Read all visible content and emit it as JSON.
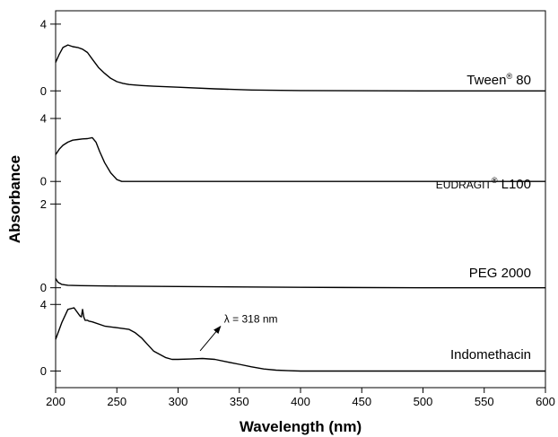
{
  "chart_data": {
    "type": "line",
    "xlabel": "Wavelength (nm)",
    "ylabel": "Absorbance",
    "xlim": [
      200,
      600
    ],
    "xticks": [
      200,
      250,
      300,
      350,
      400,
      450,
      500,
      550,
      600
    ],
    "grid": false,
    "legend": "none (series labels drawn next to each curve)",
    "series": [
      {
        "name": "Tween® 80",
        "label_main": "Tween",
        "label_sup": "®",
        "label_rest": " 80",
        "yticks": [
          0,
          4
        ],
        "ylim": [
          -0.9,
          4.8
        ],
        "x": [
          200,
          203,
          206,
          210,
          214,
          218,
          222,
          226,
          230,
          235,
          240,
          245,
          250,
          255,
          260,
          270,
          280,
          300,
          330,
          360,
          400,
          500,
          600
        ],
        "y": [
          1.7,
          2.2,
          2.6,
          2.75,
          2.65,
          2.6,
          2.5,
          2.3,
          1.9,
          1.4,
          1.05,
          0.75,
          0.55,
          0.45,
          0.38,
          0.32,
          0.28,
          0.22,
          0.12,
          0.05,
          0.02,
          0.0,
          0.0
        ]
      },
      {
        "name": "EUDRAGIT® L100",
        "label_main": "EUDRAGIT",
        "label_sup": "®",
        "label_rest": " L100",
        "yticks": [
          0,
          4
        ],
        "ylim": [
          -0.9,
          4.8
        ],
        "x": [
          200,
          203,
          206,
          210,
          214,
          218,
          222,
          226,
          230,
          233,
          236,
          240,
          245,
          250,
          254,
          258,
          300,
          400,
          500,
          600
        ],
        "y": [
          1.7,
          2.05,
          2.3,
          2.5,
          2.62,
          2.66,
          2.7,
          2.72,
          2.78,
          2.5,
          1.9,
          1.2,
          0.55,
          0.12,
          0.0,
          0.0,
          0.0,
          0.0,
          0.0,
          0.0
        ],
        "label_is_small_caps": true
      },
      {
        "name": "PEG 2000",
        "label_main": "PEG 2000",
        "label_sup": "",
        "label_rest": "",
        "yticks": [
          0,
          2
        ],
        "ylim": [
          -0.2,
          2.2
        ],
        "x": [
          200,
          202,
          205,
          210,
          220,
          250,
          300,
          400,
          500,
          600
        ],
        "y": [
          0.22,
          0.13,
          0.08,
          0.06,
          0.05,
          0.04,
          0.03,
          0.01,
          0.0,
          0.0
        ]
      },
      {
        "name": "Indomethacin",
        "label_main": "Indomethacin",
        "label_sup": "",
        "label_rest": "",
        "yticks": [
          0,
          4
        ],
        "ylim": [
          -1.0,
          4.5
        ],
        "x": [
          200,
          205,
          210,
          215,
          220,
          221,
          222,
          223,
          224,
          225,
          226,
          227,
          230,
          240,
          250,
          260,
          265,
          270,
          275,
          280,
          290,
          295,
          300,
          310,
          320,
          330,
          340,
          350,
          360,
          370,
          380,
          390,
          400,
          450,
          500,
          600
        ],
        "y": [
          1.9,
          2.9,
          3.7,
          3.8,
          3.3,
          3.25,
          3.7,
          3.25,
          3.05,
          3.05,
          3.05,
          3.0,
          2.95,
          2.7,
          2.6,
          2.5,
          2.3,
          2.0,
          1.6,
          1.2,
          0.8,
          0.7,
          0.7,
          0.72,
          0.75,
          0.7,
          0.55,
          0.4,
          0.25,
          0.12,
          0.05,
          0.02,
          0.0,
          0.0,
          0.0,
          0.0
        ]
      }
    ],
    "annotation": {
      "text": "λ = 318 nm",
      "series_index": 3,
      "arrow_from_x": 318,
      "arrow_from_y": 0.78,
      "text_x": 320,
      "text_y": 2.9
    }
  }
}
